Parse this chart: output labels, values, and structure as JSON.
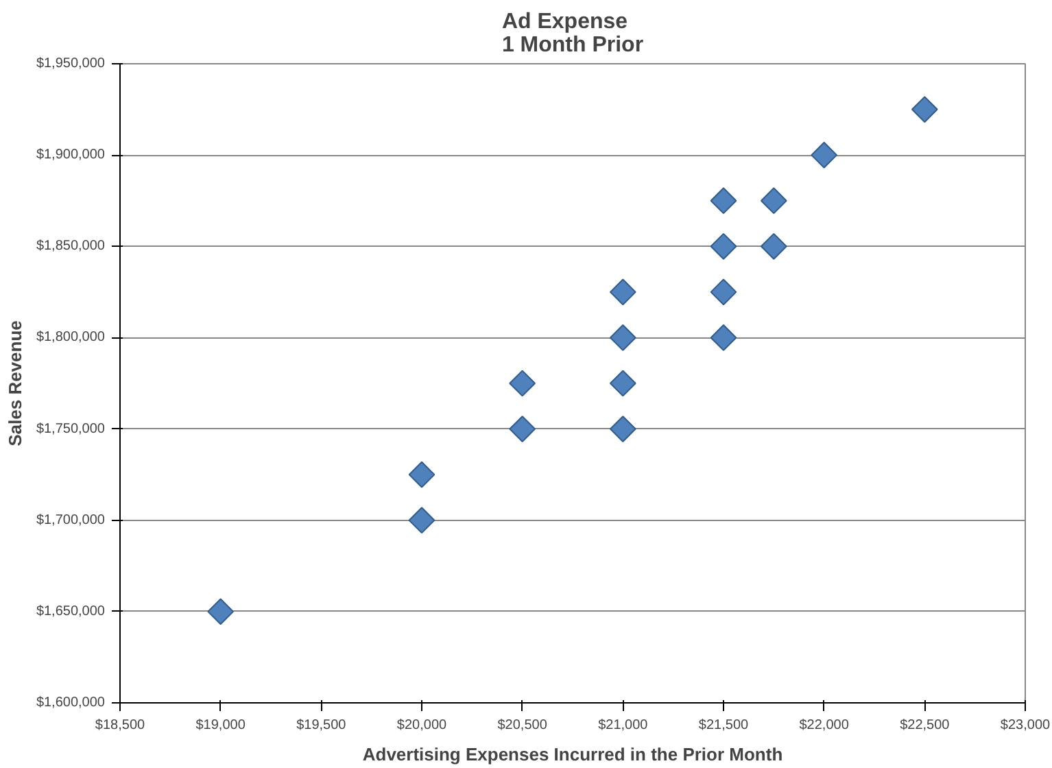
{
  "chart_data": {
    "type": "scatter",
    "title": "Ad Expense\n1 Month Prior",
    "xlabel": "Advertising Expenses Incurred in the Prior Month",
    "ylabel": "Sales Revenue",
    "x": [
      19000,
      20000,
      20000,
      20500,
      20500,
      21000,
      21000,
      21000,
      21000,
      21500,
      21500,
      21500,
      21500,
      21750,
      21750,
      22000,
      22500
    ],
    "series": [
      {
        "color": "#4f81bd",
        "values": [
          1650000,
          1700000,
          1725000,
          1750000,
          1775000,
          1750000,
          1775000,
          1800000,
          1825000,
          1800000,
          1825000,
          1850000,
          1875000,
          1850000,
          1875000,
          1900000,
          1925000
        ]
      }
    ],
    "xlim": [
      18500,
      23000
    ],
    "ylim": [
      1600000,
      1950000
    ],
    "xticks": [
      {
        "value": 18500,
        "label": "$18,500"
      },
      {
        "value": 19000,
        "label": "$19,000"
      },
      {
        "value": 19500,
        "label": "$19,500"
      },
      {
        "value": 20000,
        "label": "$20,000"
      },
      {
        "value": 20500,
        "label": "$20,500"
      },
      {
        "value": 21000,
        "label": "$21,000"
      },
      {
        "value": 21500,
        "label": "$21,500"
      },
      {
        "value": 22000,
        "label": "$22,000"
      },
      {
        "value": 22500,
        "label": "$22,500"
      },
      {
        "value": 23000,
        "label": "$23,000"
      }
    ],
    "yticks": [
      {
        "value": 1600000,
        "label": "$1,600,000"
      },
      {
        "value": 1650000,
        "label": "$1,650,000"
      },
      {
        "value": 1700000,
        "label": "$1,700,000"
      },
      {
        "value": 1750000,
        "label": "$1,750,000"
      },
      {
        "value": 1800000,
        "label": "$1,800,000"
      },
      {
        "value": 1850000,
        "label": "$1,850,000"
      },
      {
        "value": 1900000,
        "label": "$1,900,000"
      },
      {
        "value": 1950000,
        "label": "$1,950,000"
      }
    ],
    "grid": "y",
    "marker": "diamond"
  }
}
